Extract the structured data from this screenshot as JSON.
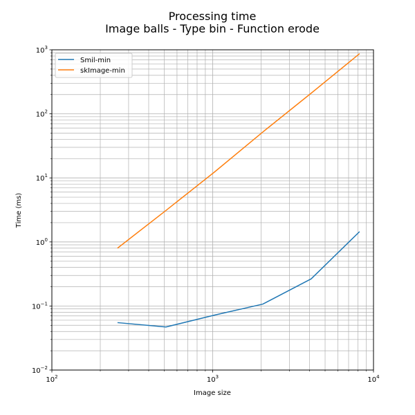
{
  "chart_data": {
    "type": "line",
    "title": "Processing time",
    "subtitle": "Image balls - Type bin - Function erode",
    "xlabel": "Image size",
    "ylabel": "Time (ms)",
    "xscale": "log",
    "yscale": "log",
    "xlim": [
      100,
      10000
    ],
    "ylim": [
      0.01,
      1000
    ],
    "grid": true,
    "legend_position": "upper-left",
    "x_ticks": [
      {
        "base": "10",
        "exp": "2"
      },
      {
        "base": "10",
        "exp": "3"
      },
      {
        "base": "10",
        "exp": "4"
      }
    ],
    "y_ticks": [
      {
        "base": "10",
        "exp": "−2"
      },
      {
        "base": "10",
        "exp": "−1"
      },
      {
        "base": "10",
        "exp": "0"
      },
      {
        "base": "10",
        "exp": "1"
      },
      {
        "base": "10",
        "exp": "2"
      },
      {
        "base": "10",
        "exp": "3"
      }
    ],
    "x": [
      256,
      512,
      1024,
      2048,
      4096,
      8192
    ],
    "series": [
      {
        "name": "Smil-min",
        "color": "#1f77b4",
        "values": [
          0.055,
          0.047,
          0.072,
          0.107,
          0.265,
          1.45
        ]
      },
      {
        "name": "skImage-min",
        "color": "#ff7f0e",
        "values": [
          0.8,
          3.1,
          12.3,
          52,
          210,
          870
        ]
      }
    ]
  }
}
